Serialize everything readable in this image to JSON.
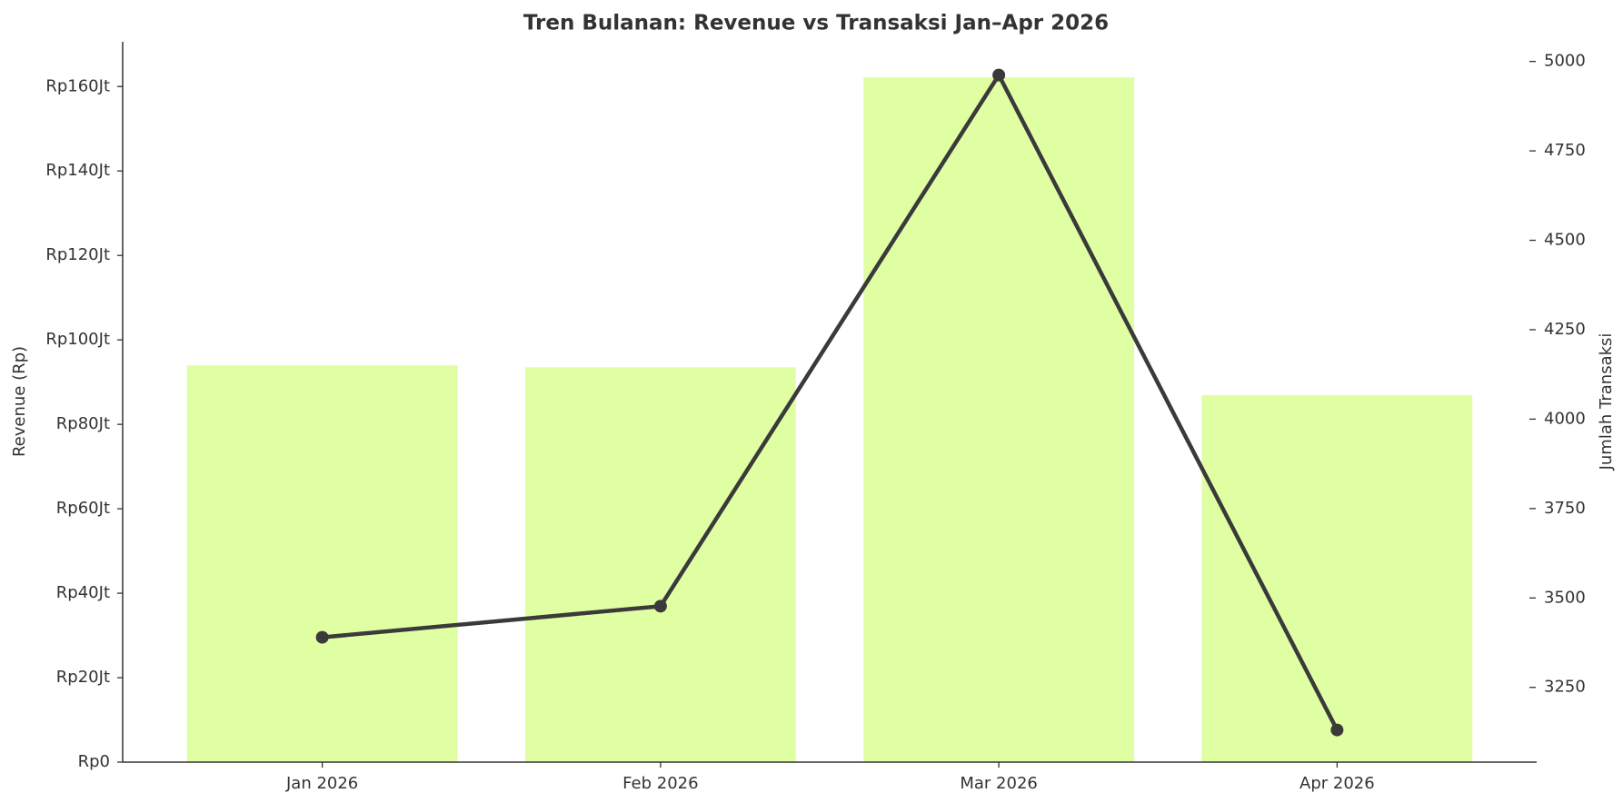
{
  "chart_data": {
    "type": "bar-line",
    "title": "Tren Bulanan: Revenue vs Transaksi Jan–Apr 2026",
    "ylabel": "Revenue (Rp)",
    "y2label": "Jumlah Transaksi",
    "categories": [
      "Jan 2026",
      "Feb 2026",
      "Mar 2026",
      "Apr 2026"
    ],
    "series": [
      {
        "name": "Revenue",
        "type": "bar",
        "color": "#e0ffa3",
        "values": [
          94000000,
          93500000,
          162200000,
          86900000
        ]
      },
      {
        "name": "Transaksi",
        "type": "line",
        "axis": "y2",
        "color": "#3a3a3a",
        "values": [
          3390,
          3477,
          4962,
          3131
        ]
      }
    ],
    "ylim": [
      0,
      170600000
    ],
    "yticks": [
      {
        "value": 0,
        "label": "Rp0"
      },
      {
        "value": 20000000,
        "label": "Rp20Jt"
      },
      {
        "value": 40000000,
        "label": "Rp40Jt"
      },
      {
        "value": 60000000,
        "label": "Rp60Jt"
      },
      {
        "value": 80000000,
        "label": "Rp80Jt"
      },
      {
        "value": 100000000,
        "label": "Rp100Jt"
      },
      {
        "value": 120000000,
        "label": "Rp120Jt"
      },
      {
        "value": 140000000,
        "label": "Rp140Jt"
      },
      {
        "value": 160000000,
        "label": "Rp160Jt"
      }
    ],
    "y2lim": [
      3041,
      5055
    ],
    "y2ticks": [
      3250,
      3500,
      3750,
      4000,
      4250,
      4500,
      4750,
      5000
    ],
    "grid": false
  }
}
